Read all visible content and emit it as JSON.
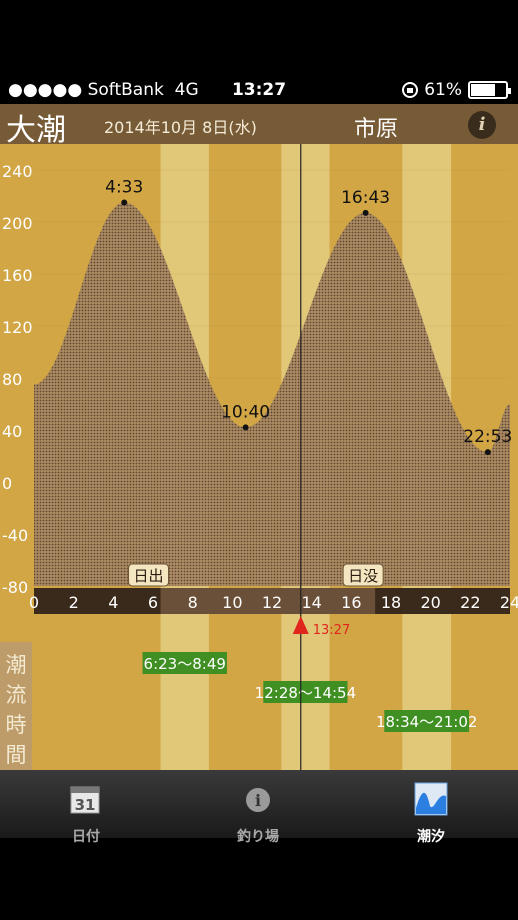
{
  "status_bar": {
    "signal": "●●●●● SoftBank",
    "network": "4G",
    "time": "13:27",
    "battery": "61%"
  },
  "header": {
    "tide_type": "大潮",
    "date": "2014年10月 8日(水)",
    "location": "市原",
    "info_glyph": "i"
  },
  "chart_data": {
    "type": "area",
    "x_ticks": [
      "0",
      "2",
      "4",
      "6",
      "8",
      "10",
      "12",
      "14",
      "16",
      "18",
      "20",
      "22",
      "24"
    ],
    "y_ticks": [
      "240",
      "200",
      "160",
      "120",
      "80",
      "40",
      "0",
      "-40",
      "-80"
    ],
    "ylim": [
      -80,
      240
    ],
    "xlim": [
      0,
      24
    ],
    "series": [
      {
        "x": [
          0,
          4.55,
          10.67,
          16.72,
          22.88,
          24
        ],
        "y": [
          75,
          215,
          42,
          207,
          23,
          60
        ]
      }
    ],
    "extrema_labels": [
      {
        "time": "4:33",
        "x": 4.55,
        "y": 215
      },
      {
        "time": "10:40",
        "x": 10.67,
        "y": 42
      },
      {
        "time": "16:43",
        "x": 16.72,
        "y": 207
      },
      {
        "time": "22:53",
        "x": 22.88,
        "y": 23
      }
    ],
    "sunrise": {
      "label": "日出",
      "x": 6.38
    },
    "sunset": {
      "label": "日没",
      "x": 17.2
    },
    "now": {
      "label": "13:27",
      "x": 13.45
    },
    "color": "#6b4d3c",
    "tidal_current_title": "潮流時間",
    "tidal_current_windows": [
      {
        "label": "6:23〜8:49",
        "start": 6.38,
        "end": 8.82
      },
      {
        "label": "12:28〜14:54",
        "start": 12.47,
        "end": 14.9
      },
      {
        "label": "18:34〜21:02",
        "start": 18.57,
        "end": 21.03
      }
    ]
  },
  "tabs": [
    {
      "label": "日付",
      "icon": "calendar-icon",
      "icon_text": "31"
    },
    {
      "label": "釣り場",
      "icon": "info-circle-icon",
      "icon_text": "i"
    },
    {
      "label": "潮汐",
      "icon": "tide-wave-icon"
    }
  ]
}
